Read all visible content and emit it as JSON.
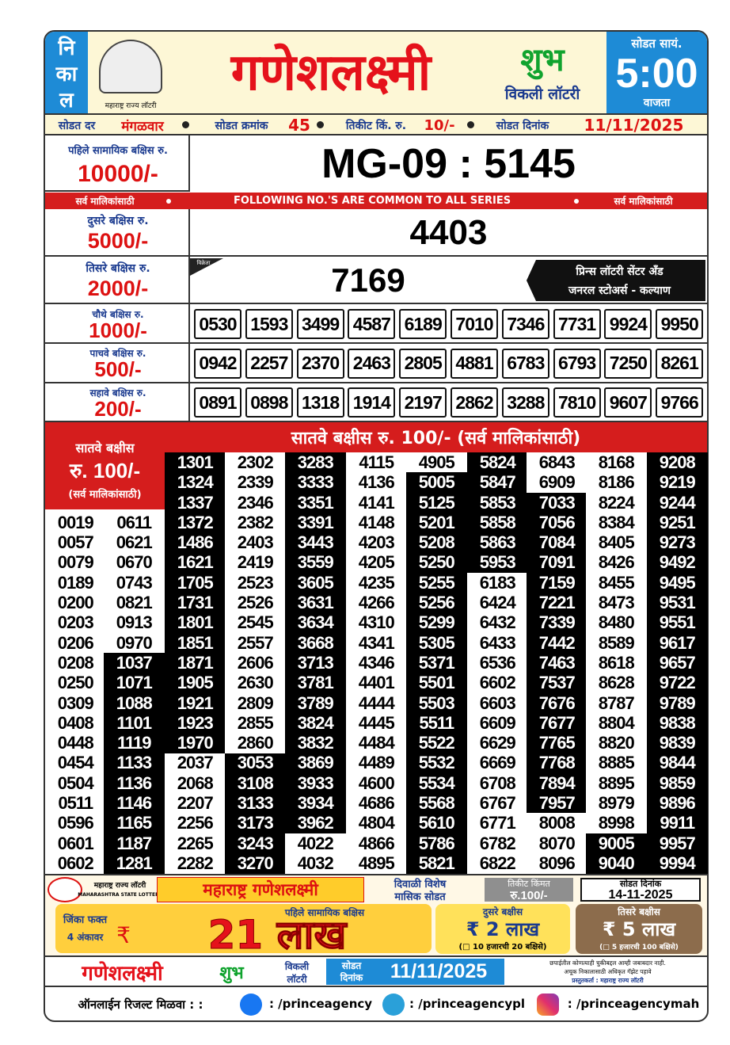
{
  "header": {
    "nikal": [
      "नि",
      "का",
      "ल"
    ],
    "logo_caption": "महाराष्ट्र राज्य लॉटरी",
    "title": "गणेशलक्ष्मी",
    "shubh": "शुभ",
    "weekly": "विकली लॉटरी",
    "draw_time_label": "सोडत सायं.",
    "draw_time": "5:00",
    "draw_time_suffix": "वाजता"
  },
  "info": {
    "day_label": "सोडत दर",
    "day": "मंगळवार",
    "draw_no_label": "सोडत क्रमांक",
    "draw_no": "45",
    "price_label": "तिकीट किं. रु.",
    "price": "10/-",
    "date_label": "सोडत दिनांक",
    "date": "11/11/2025"
  },
  "prizes": {
    "first": {
      "label": "पहिले सामायिक बक्षिस रु.",
      "amount": "10000/-",
      "number": "MG-09 : 5145"
    },
    "banner": [
      "सर्व मालिकांसाठी",
      "FOLLOWING NO.'S ARE COMMON TO ALL SERIES",
      "सर्व मालिकांसाठी"
    ],
    "second": {
      "label": "दुसरे बक्षिस रु.",
      "amount": "5000/-",
      "number": "4403"
    },
    "third": {
      "label": "तिसरे बक्षिस रु.",
      "amount": "2000/-",
      "tag": "विक्रेता",
      "number": "7169",
      "seller": [
        "प्रिन्स लॉटरी सेंटर अँड",
        "जनरल स्टोअर्स - कल्याण"
      ]
    },
    "rows": [
      {
        "label": "चौथे बक्षिस रु.",
        "amount": "1000/-",
        "numbers": [
          "0530",
          "1593",
          "3499",
          "4587",
          "6189",
          "7010",
          "7346",
          "7731",
          "9924",
          "9950"
        ]
      },
      {
        "label": "पाचवे बक्षिस रु.",
        "amount": "500/-",
        "numbers": [
          "0942",
          "2257",
          "2370",
          "2463",
          "2805",
          "4881",
          "6783",
          "6793",
          "7250",
          "8261"
        ]
      },
      {
        "label": "सहावे बक्षिस रु.",
        "amount": "200/-",
        "numbers": [
          "0891",
          "0898",
          "1318",
          "1914",
          "2197",
          "2862",
          "3288",
          "7810",
          "9607",
          "9766"
        ]
      }
    ]
  },
  "seventh": {
    "header": "सातवे बक्षीस रु. 100/- (सर्व मालिकांसाठी)",
    "label": "सातवे बक्षीस",
    "amount": "रु. 100/-",
    "note": "(सर्व मालिकांसाठी)",
    "columns": [
      [
        "0019",
        "0057",
        "0079",
        "0189",
        "0200",
        "0203",
        "0206",
        "0208",
        "0250",
        "0309",
        "0408",
        "0448",
        "0454",
        "0504",
        "0511",
        "0596",
        "0601",
        "0602"
      ],
      [
        "0611",
        "0621",
        "0670",
        "0743",
        "0821",
        "0913",
        "0970",
        "1037",
        "1071",
        "1088",
        "1101",
        "1119",
        "1133",
        "1136",
        "1146",
        "1165",
        "1187",
        "1281"
      ],
      [
        "1301",
        "1324",
        "1337",
        "1372",
        "1486",
        "1621",
        "1705",
        "1731",
        "1801",
        "1851",
        "1871",
        "1905",
        "1921",
        "1923",
        "1970",
        "2037",
        "2068",
        "2207",
        "2256",
        "2265",
        "2282"
      ],
      [
        "2302",
        "2339",
        "2346",
        "2382",
        "2403",
        "2419",
        "2523",
        "2526",
        "2545",
        "2557",
        "2606",
        "2630",
        "2809",
        "2855",
        "2860",
        "3053",
        "3108",
        "3133",
        "3173",
        "3243",
        "3270"
      ],
      [
        "3283",
        "3333",
        "3351",
        "3391",
        "3443",
        "3559",
        "3605",
        "3631",
        "3634",
        "3668",
        "3713",
        "3781",
        "3789",
        "3824",
        "3832",
        "3869",
        "3933",
        "3934",
        "3962",
        "4022",
        "4032"
      ],
      [
        "4115",
        "4136",
        "4141",
        "4148",
        "4203",
        "4205",
        "4235",
        "4266",
        "4310",
        "4341",
        "4346",
        "4401",
        "4444",
        "4445",
        "4484",
        "4489",
        "4600",
        "4686",
        "4804",
        "4866",
        "4895"
      ],
      [
        "4905",
        "5005",
        "5125",
        "5201",
        "5208",
        "5250",
        "5255",
        "5256",
        "5299",
        "5305",
        "5371",
        "5501",
        "5503",
        "5511",
        "5522",
        "5532",
        "5534",
        "5568",
        "5610",
        "5786",
        "5821"
      ],
      [
        "5824",
        "5847",
        "5853",
        "5858",
        "5863",
        "5953",
        "6183",
        "6424",
        "6432",
        "6433",
        "6536",
        "6602",
        "6603",
        "6609",
        "6629",
        "6669",
        "6708",
        "6767",
        "6771",
        "6782",
        "6822"
      ],
      [
        "6843",
        "6909",
        "7033",
        "7056",
        "7084",
        "7091",
        "7159",
        "7221",
        "7339",
        "7442",
        "7463",
        "7537",
        "7676",
        "7677",
        "7765",
        "7768",
        "7894",
        "7957",
        "8008",
        "8070",
        "8096"
      ],
      [
        "8168",
        "8186",
        "8224",
        "8384",
        "8405",
        "8426",
        "8455",
        "8473",
        "8480",
        "8589",
        "8618",
        "8628",
        "8787",
        "8804",
        "8820",
        "8885",
        "8895",
        "8979",
        "8998",
        "9005",
        "9040"
      ],
      [
        "9208",
        "9219",
        "9244",
        "9251",
        "9273",
        "9492",
        "9495",
        "9531",
        "9551",
        "9617",
        "9657",
        "9722",
        "9789",
        "9838",
        "9839",
        "9844",
        "9859",
        "9896",
        "9911",
        "9957",
        "9994"
      ]
    ]
  },
  "promo": {
    "lottery_name": "महाराष्ट्र राज्य लॉटरी",
    "lottery_name_en": "MAHARASHTRA STATE LOTTERY",
    "title": "महाराष्ट्र गणेशलक्ष्मी",
    "special": [
      "दिवाळी विशेष",
      "मासिक सोडत"
    ],
    "price_label": "तिकीट किंमत",
    "price": "रु.100/-",
    "date_label": "सोडत दिनांक",
    "date": "14-11-2025",
    "win": [
      "जिंका फक्त",
      "4 अंकावर"
    ],
    "rupee": "₹",
    "first_label": "पहिले सामायिक बक्षिस",
    "first_amount": "21 लाख",
    "second_label": "दुसरे बक्षीस",
    "second_amount": "₹ 2 लाख",
    "second_note": "(□ 10 हजारची 20 बक्षिसे)",
    "third_label": "तिसरे बक्षीस",
    "third_amount": "₹ 5 लाख",
    "third_note": "(□ 5 हजारची 100 बक्षिसे)"
  },
  "footer": {
    "title": "गणेशलक्ष्मी",
    "shubh": "शुभ",
    "weekly": [
      "विकली",
      "लॉटरी"
    ],
    "date_label": [
      "सोडत",
      "दिनांक"
    ],
    "date": "11/11/2025",
    "disclaimer": [
      "छपाईतील कोणत्याही चुकीबद्दल आम्ही जबाबदार नाही.",
      "अचूक निकालासाठी अधिकृत गॅझेट पहावे",
      "प्रस्तुतकर्ता : महाराष्ट्र राज्य लॉटरी"
    ]
  },
  "social": {
    "label": "ऑनलाईन रिजल्ट मिळवा : :",
    "facebook": ": /princeagency",
    "telegram": ": /princeagencypl",
    "instagram": ": /princeagencymah"
  }
}
